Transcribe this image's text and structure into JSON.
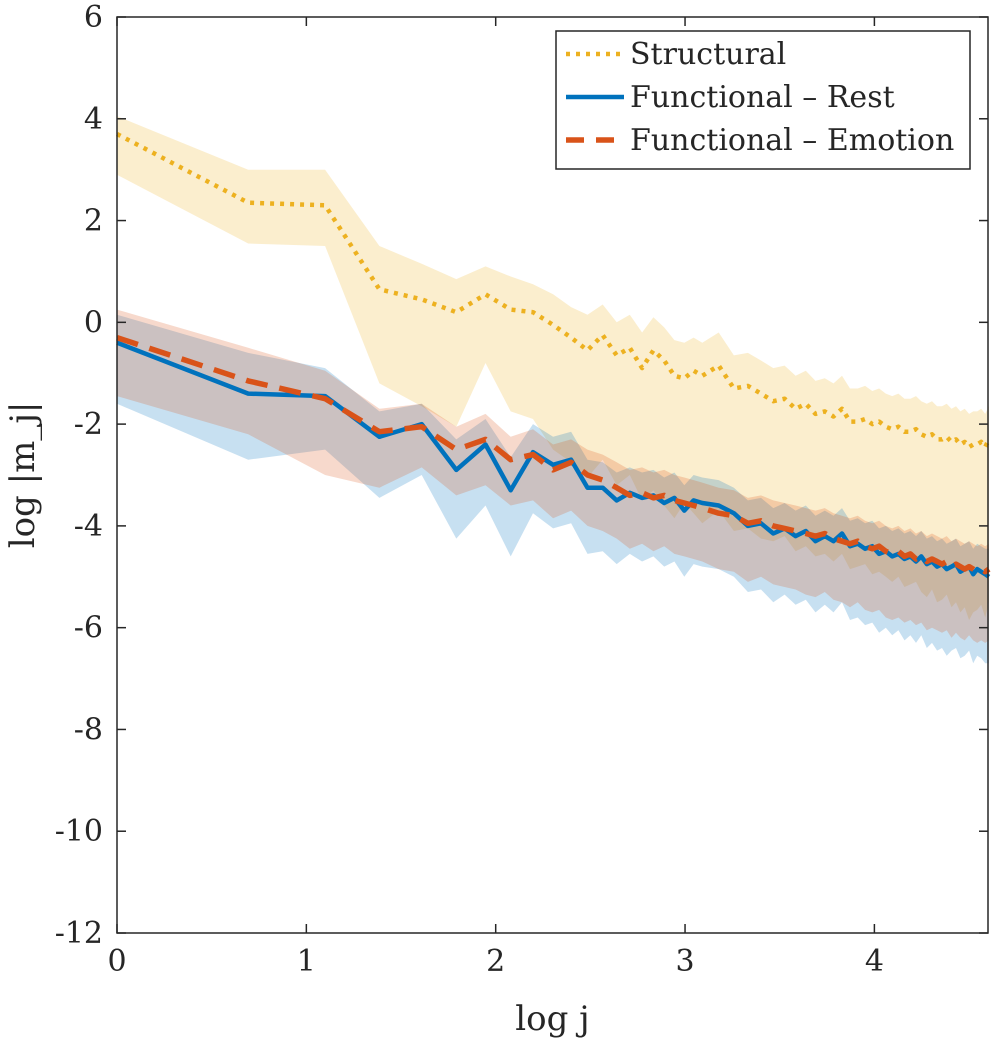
{
  "chart_data": {
    "type": "line",
    "xlabel": "log j",
    "ylabel": "log |m_j|",
    "xlim": [
      0,
      4.6
    ],
    "ylim": [
      -12,
      6
    ],
    "x_ticks": [
      "0",
      "1",
      "2",
      "3",
      "4"
    ],
    "y_ticks": [
      "6",
      "4",
      "2",
      "0",
      "-2",
      "-4",
      "-6",
      "-8",
      "-10",
      "-12"
    ],
    "grid": false,
    "legend_position": "top-right",
    "colors": {
      "structural": "#EDB120",
      "rest": "#0072BD",
      "emotion": "#D95319"
    },
    "series": [
      {
        "name": "Structural",
        "style": "dotted",
        "color": "#EDB120",
        "x": [
          0,
          0.693,
          1.099,
          1.386,
          1.609,
          1.792,
          1.946,
          2.079,
          2.197,
          2.303,
          2.398,
          2.485,
          2.565,
          2.639,
          2.708,
          2.773,
          2.833,
          2.89,
          2.944,
          2.996,
          3.045,
          3.091,
          3.178,
          3.258,
          3.332,
          3.401,
          3.466,
          3.526,
          3.584,
          3.638,
          3.689,
          3.738,
          3.784,
          3.829,
          3.871,
          3.912,
          3.951,
          3.989,
          4.025,
          4.06,
          4.094,
          4.127,
          4.159,
          4.19,
          4.22,
          4.248,
          4.277,
          4.304,
          4.331,
          4.357,
          4.382,
          4.407,
          4.431,
          4.454,
          4.477,
          4.5,
          4.522,
          4.543,
          4.564,
          4.585,
          4.605
        ],
        "values": [
          3.7,
          2.35,
          2.3,
          0.65,
          0.45,
          0.2,
          0.55,
          0.25,
          0.2,
          -0.05,
          -0.3,
          -0.55,
          -0.25,
          -0.65,
          -0.5,
          -0.9,
          -0.55,
          -0.75,
          -1.05,
          -1.1,
          -0.95,
          -1.05,
          -0.85,
          -1.3,
          -1.25,
          -1.4,
          -1.55,
          -1.5,
          -1.7,
          -1.6,
          -1.8,
          -1.75,
          -1.85,
          -1.7,
          -1.95,
          -1.95,
          -1.9,
          -2.0,
          -1.95,
          -2.05,
          -2.1,
          -2.05,
          -2.15,
          -2.15,
          -2.1,
          -2.2,
          -2.25,
          -2.2,
          -2.3,
          -2.3,
          -2.25,
          -2.35,
          -2.3,
          -2.4,
          -2.35,
          -2.45,
          -2.4,
          -2.4,
          -2.35,
          -2.45,
          -2.3
        ],
        "upper": [
          4.05,
          3.0,
          3.0,
          1.5,
          1.15,
          0.85,
          1.1,
          0.9,
          0.75,
          0.55,
          0.3,
          0.15,
          0.35,
          0.0,
          0.15,
          -0.2,
          0.1,
          -0.1,
          -0.35,
          -0.4,
          -0.3,
          -0.4,
          -0.2,
          -0.65,
          -0.6,
          -0.75,
          -0.9,
          -0.85,
          -1.05,
          -0.95,
          -1.15,
          -1.1,
          -1.2,
          -1.05,
          -1.3,
          -1.3,
          -1.25,
          -1.35,
          -1.3,
          -1.4,
          -1.45,
          -1.4,
          -1.5,
          -1.5,
          -1.45,
          -1.55,
          -1.6,
          -1.55,
          -1.65,
          -1.65,
          -1.6,
          -1.7,
          -1.65,
          -1.75,
          -1.7,
          -1.8,
          -1.75,
          -1.75,
          -1.7,
          -1.8,
          -1.65
        ],
        "lower": [
          2.9,
          1.55,
          1.5,
          -1.2,
          -1.65,
          -2.05,
          -0.8,
          -1.75,
          -1.9,
          -2.5,
          -2.75,
          -3.05,
          -2.7,
          -3.2,
          -3.0,
          -3.5,
          -3.3,
          -3.6,
          -3.85,
          -3.55,
          -3.75,
          -3.95,
          -3.7,
          -4.1,
          -4.05,
          -4.25,
          -4.3,
          -4.2,
          -4.5,
          -4.4,
          -4.6,
          -4.55,
          -4.7,
          -4.55,
          -4.85,
          -4.8,
          -4.75,
          -4.95,
          -4.9,
          -5.0,
          -5.1,
          -5.0,
          -5.2,
          -5.15,
          -5.1,
          -5.3,
          -5.4,
          -5.25,
          -5.5,
          -5.45,
          -5.35,
          -5.6,
          -5.5,
          -5.7,
          -5.6,
          -5.85,
          -5.7,
          -5.65,
          -5.55,
          -5.8,
          -5.5
        ]
      },
      {
        "name": "Functional – Rest",
        "style": "solid",
        "color": "#0072BD",
        "x": [
          0,
          0.693,
          1.099,
          1.386,
          1.609,
          1.792,
          1.946,
          2.079,
          2.197,
          2.303,
          2.398,
          2.485,
          2.565,
          2.639,
          2.708,
          2.773,
          2.833,
          2.89,
          2.944,
          2.996,
          3.045,
          3.091,
          3.178,
          3.258,
          3.332,
          3.401,
          3.466,
          3.526,
          3.584,
          3.638,
          3.689,
          3.738,
          3.784,
          3.829,
          3.871,
          3.912,
          3.951,
          3.989,
          4.025,
          4.06,
          4.094,
          4.127,
          4.159,
          4.19,
          4.22,
          4.248,
          4.277,
          4.304,
          4.331,
          4.357,
          4.382,
          4.407,
          4.431,
          4.454,
          4.477,
          4.5,
          4.522,
          4.543,
          4.564,
          4.585,
          4.605
        ],
        "values": [
          -0.4,
          -1.4,
          -1.45,
          -2.25,
          -2.0,
          -2.9,
          -2.4,
          -3.3,
          -2.55,
          -2.8,
          -2.7,
          -3.25,
          -3.25,
          -3.5,
          -3.35,
          -3.45,
          -3.4,
          -3.55,
          -3.45,
          -3.7,
          -3.5,
          -3.55,
          -3.6,
          -3.75,
          -4.0,
          -3.95,
          -4.15,
          -4.05,
          -4.2,
          -4.1,
          -4.3,
          -4.2,
          -4.3,
          -4.15,
          -4.4,
          -4.35,
          -4.45,
          -4.4,
          -4.55,
          -4.5,
          -4.6,
          -4.55,
          -4.65,
          -4.6,
          -4.7,
          -4.6,
          -4.75,
          -4.7,
          -4.8,
          -4.75,
          -4.85,
          -4.8,
          -4.75,
          -4.9,
          -4.85,
          -4.8,
          -4.95,
          -4.85,
          -4.9,
          -4.95,
          -5.0
        ],
        "upper": [
          0.15,
          -0.6,
          -0.9,
          -1.75,
          -1.6,
          -2.3,
          -1.9,
          -2.65,
          -2.0,
          -2.25,
          -2.15,
          -2.7,
          -2.75,
          -2.95,
          -2.85,
          -2.95,
          -2.9,
          -3.05,
          -2.95,
          -3.2,
          -3.0,
          -3.05,
          -3.1,
          -3.25,
          -3.5,
          -3.45,
          -3.65,
          -3.55,
          -3.7,
          -3.6,
          -3.8,
          -3.7,
          -3.8,
          -3.65,
          -3.9,
          -3.85,
          -3.95,
          -3.9,
          -4.05,
          -4.0,
          -4.1,
          -4.05,
          -4.15,
          -4.1,
          -4.2,
          -4.1,
          -4.25,
          -4.2,
          -4.3,
          -4.25,
          -4.35,
          -4.3,
          -4.25,
          -4.4,
          -4.35,
          -4.3,
          -4.45,
          -4.35,
          -4.4,
          -4.45,
          -4.45
        ],
        "lower": [
          -1.6,
          -2.7,
          -2.5,
          -3.45,
          -3.0,
          -4.25,
          -3.6,
          -4.6,
          -3.75,
          -4.05,
          -3.95,
          -4.55,
          -4.5,
          -4.75,
          -4.55,
          -4.7,
          -4.6,
          -4.8,
          -4.7,
          -5.0,
          -4.75,
          -4.8,
          -4.85,
          -5.0,
          -5.3,
          -5.25,
          -5.5,
          -5.35,
          -5.55,
          -5.45,
          -5.7,
          -5.55,
          -5.7,
          -5.5,
          -5.85,
          -5.8,
          -5.95,
          -5.9,
          -6.1,
          -6.0,
          -6.15,
          -6.05,
          -6.25,
          -6.15,
          -6.3,
          -6.15,
          -6.4,
          -6.3,
          -6.45,
          -6.4,
          -6.55,
          -6.45,
          -6.4,
          -6.6,
          -6.55,
          -6.45,
          -6.7,
          -6.55,
          -6.6,
          -6.7,
          -6.7
        ]
      },
      {
        "name": "Functional – Emotion",
        "style": "dashed",
        "color": "#D95319",
        "x": [
          0,
          0.693,
          1.099,
          1.386,
          1.609,
          1.792,
          1.946,
          2.079,
          2.197,
          2.303,
          2.398,
          2.485,
          2.565,
          2.639,
          2.708,
          2.773,
          2.833,
          2.89,
          2.944,
          2.996,
          3.045,
          3.091,
          3.178,
          3.258,
          3.332,
          3.401,
          3.466,
          3.526,
          3.584,
          3.638,
          3.689,
          3.738,
          3.784,
          3.829,
          3.871,
          3.912,
          3.951,
          3.989,
          4.025,
          4.06,
          4.094,
          4.127,
          4.159,
          4.19,
          4.22,
          4.248,
          4.277,
          4.304,
          4.331,
          4.357,
          4.382,
          4.407,
          4.431,
          4.454,
          4.477,
          4.5,
          4.522,
          4.543,
          4.564,
          4.585,
          4.605
        ],
        "values": [
          -0.3,
          -1.15,
          -1.5,
          -2.15,
          -2.05,
          -2.5,
          -2.3,
          -2.7,
          -2.6,
          -2.9,
          -2.75,
          -3.0,
          -3.1,
          -3.25,
          -3.4,
          -3.35,
          -3.45,
          -3.4,
          -3.5,
          -3.55,
          -3.6,
          -3.65,
          -3.75,
          -3.8,
          -3.95,
          -3.9,
          -4.0,
          -4.05,
          -4.1,
          -4.15,
          -4.2,
          -4.15,
          -4.25,
          -4.3,
          -4.35,
          -4.3,
          -4.4,
          -4.45,
          -4.4,
          -4.5,
          -4.55,
          -4.5,
          -4.6,
          -4.55,
          -4.65,
          -4.6,
          -4.7,
          -4.65,
          -4.7,
          -4.75,
          -4.7,
          -4.8,
          -4.75,
          -4.8,
          -4.85,
          -4.8,
          -4.85,
          -4.9,
          -4.85,
          -4.9,
          -4.85
        ],
        "upper": [
          0.25,
          -0.5,
          -0.95,
          -1.7,
          -1.6,
          -2.05,
          -1.8,
          -2.25,
          -2.1,
          -2.4,
          -2.3,
          -2.5,
          -2.6,
          -2.75,
          -2.9,
          -2.85,
          -2.95,
          -2.9,
          -3.0,
          -3.05,
          -3.1,
          -3.15,
          -3.25,
          -3.3,
          -3.45,
          -3.4,
          -3.5,
          -3.55,
          -3.6,
          -3.65,
          -3.7,
          -3.65,
          -3.75,
          -3.8,
          -3.85,
          -3.8,
          -3.9,
          -3.95,
          -3.9,
          -4.0,
          -4.05,
          -4.0,
          -4.1,
          -4.05,
          -4.15,
          -4.1,
          -4.2,
          -4.15,
          -4.2,
          -4.25,
          -4.2,
          -4.3,
          -4.25,
          -4.3,
          -4.35,
          -4.3,
          -4.35,
          -4.4,
          -4.35,
          -4.4,
          -4.35
        ],
        "lower": [
          -1.45,
          -2.2,
          -3.0,
          -3.25,
          -2.85,
          -3.4,
          -3.2,
          -3.6,
          -3.5,
          -3.85,
          -3.7,
          -4.0,
          -4.1,
          -4.25,
          -4.45,
          -4.35,
          -4.5,
          -4.4,
          -4.55,
          -4.6,
          -4.65,
          -4.7,
          -4.85,
          -4.9,
          -5.1,
          -5.0,
          -5.15,
          -5.2,
          -5.25,
          -5.35,
          -5.4,
          -5.3,
          -5.45,
          -5.5,
          -5.6,
          -5.5,
          -5.65,
          -5.7,
          -5.65,
          -5.8,
          -5.85,
          -5.8,
          -5.9,
          -5.85,
          -5.95,
          -5.9,
          -6.05,
          -6.0,
          -6.05,
          -6.1,
          -6.05,
          -6.2,
          -6.1,
          -6.2,
          -6.25,
          -6.15,
          -6.25,
          -6.3,
          -6.25,
          -6.3,
          -6.25
        ]
      }
    ]
  }
}
